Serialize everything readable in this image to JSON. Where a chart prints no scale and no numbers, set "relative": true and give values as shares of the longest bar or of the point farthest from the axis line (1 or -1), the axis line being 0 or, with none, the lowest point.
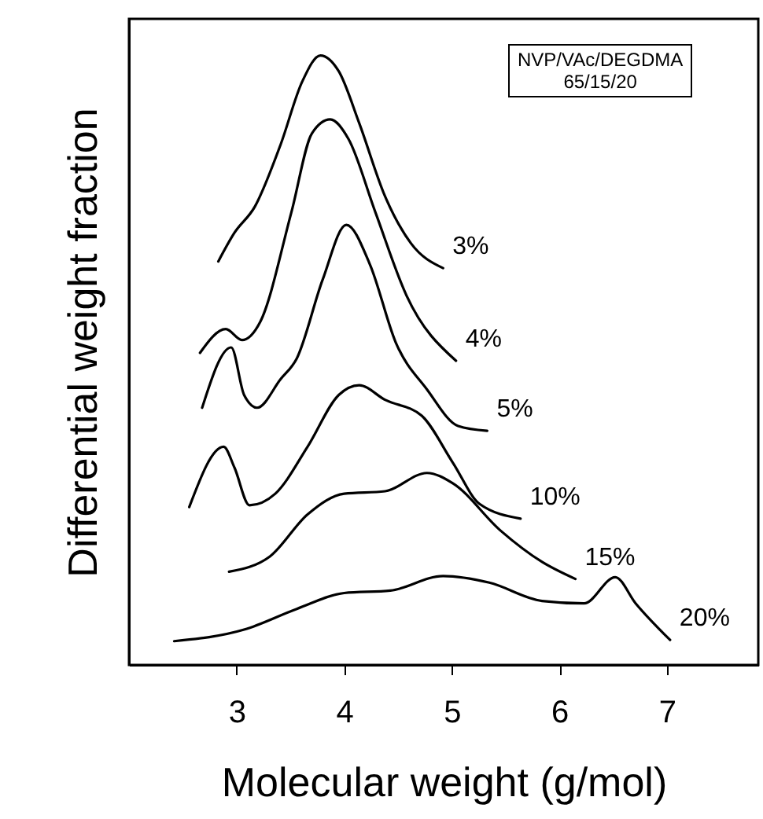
{
  "chart_data": {
    "type": "line",
    "xlabel": "Molecular weight (g/mol)",
    "ylabel": "Differential weight fraction",
    "annotations": [
      "NVP/VAc/DEGDMA\n65/15/20"
    ],
    "relative": true,
    "xlim": [
      2,
      7.85
    ],
    "xticks": [
      3,
      4,
      5,
      6,
      7
    ],
    "grid": false,
    "legend": false,
    "marker": "none",
    "line_style": "solid",
    "series": [
      {
        "name": "3%",
        "color": "#000000",
        "x": [
          2.83,
          2.98,
          3.17,
          3.41,
          3.61,
          3.78,
          3.95,
          4.14,
          4.38,
          4.62,
          4.92
        ],
        "values": [
          0.662,
          0.709,
          0.752,
          0.854,
          0.957,
          1.0,
          0.974,
          0.889,
          0.769,
          0.692,
          0.651
        ]
      },
      {
        "name": "4%",
        "color": "#000000",
        "x": [
          2.66,
          2.9,
          3.05,
          3.22,
          3.51,
          3.7,
          3.87,
          4.04,
          4.29,
          4.58,
          5.04
        ],
        "values": [
          0.512,
          0.551,
          0.533,
          0.563,
          0.743,
          0.872,
          0.895,
          0.863,
          0.743,
          0.606,
          0.499
        ]
      },
      {
        "name": "5%",
        "color": "#000000",
        "x": [
          2.68,
          2.95,
          3.07,
          3.19,
          3.41,
          3.56,
          3.8,
          4.02,
          4.24,
          4.48,
          4.77,
          5.06,
          5.33
        ],
        "values": [
          0.422,
          0.521,
          0.443,
          0.422,
          0.469,
          0.503,
          0.632,
          0.722,
          0.657,
          0.529,
          0.452,
          0.392,
          0.384
        ]
      },
      {
        "name": "10%",
        "color": "#000000",
        "x": [
          2.56,
          2.88,
          2.98,
          3.12,
          3.36,
          3.66,
          3.95,
          4.14,
          4.38,
          4.72,
          5.01,
          5.26,
          5.64
        ],
        "values": [
          0.259,
          0.358,
          0.324,
          0.262,
          0.281,
          0.358,
          0.443,
          0.459,
          0.435,
          0.409,
          0.332,
          0.264,
          0.24
        ]
      },
      {
        "name": "15%",
        "color": "#000000",
        "x": [
          2.93,
          3.31,
          3.66,
          4.0,
          4.38,
          4.77,
          5.01,
          5.45,
          5.84,
          6.15
        ],
        "values": [
          0.153,
          0.178,
          0.247,
          0.281,
          0.285,
          0.315,
          0.298,
          0.221,
          0.169,
          0.141
        ]
      },
      {
        "name": "20%",
        "color": "#000000",
        "x": [
          2.42,
          3.07,
          3.56,
          4.0,
          4.43,
          4.92,
          5.35,
          5.84,
          6.23,
          6.52,
          6.71,
          7.03
        ],
        "values": [
          0.039,
          0.058,
          0.092,
          0.118,
          0.122,
          0.146,
          0.135,
          0.105,
          0.101,
          0.144,
          0.101,
          0.041
        ]
      }
    ]
  }
}
